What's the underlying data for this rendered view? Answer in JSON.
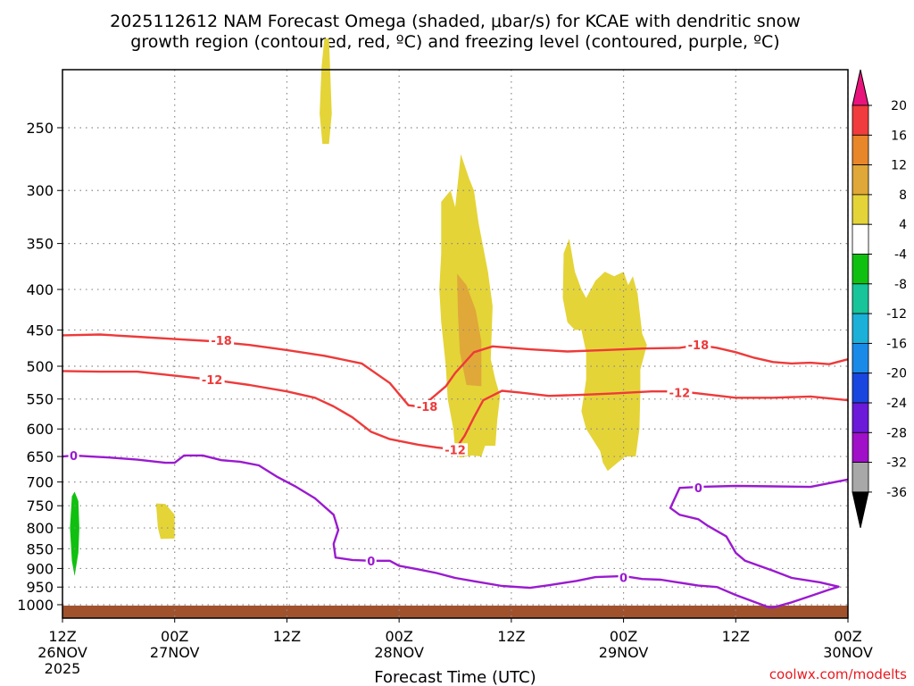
{
  "chart_data": {
    "type": "heatmap",
    "title_line1": "2025112612 NAM Forecast Omega (shaded, μbar/s) for KCAE with dendritic snow",
    "title_line2": "growth region (contoured, red, ºC) and freezing level (contoured, purple, ºC)",
    "xlabel": "Forecast Time (UTC)",
    "credit": "coolwx.com/modelts",
    "x_ticks": [
      {
        "hour": 0,
        "line1": "12Z",
        "line2": "26NOV",
        "line3": "2025"
      },
      {
        "hour": 12,
        "line1": "00Z",
        "line2": "27NOV",
        "line3": ""
      },
      {
        "hour": 24,
        "line1": "12Z",
        "line2": "",
        "line3": ""
      },
      {
        "hour": 36,
        "line1": "00Z",
        "line2": "28NOV",
        "line3": ""
      },
      {
        "hour": 48,
        "line1": "12Z",
        "line2": "",
        "line3": ""
      },
      {
        "hour": 60,
        "line1": "00Z",
        "line2": "29NOV",
        "line3": ""
      },
      {
        "hour": 72,
        "line1": "12Z",
        "line2": "",
        "line3": ""
      },
      {
        "hour": 84,
        "line1": "00Z",
        "line2": "30NOV",
        "line3": ""
      }
    ],
    "x_range_hours": [
      0,
      84
    ],
    "y_ticks_hpa": [
      250,
      300,
      350,
      400,
      450,
      500,
      550,
      600,
      650,
      700,
      750,
      800,
      850,
      900,
      950,
      1000
    ],
    "y_range_hpa": [
      200,
      1020
    ],
    "colorbar": {
      "tick_labels": [
        "20",
        "16",
        "12",
        "8",
        "4",
        "-4",
        "-8",
        "-12",
        "-16",
        "-20",
        "-24",
        "-28",
        "-32",
        "-36"
      ],
      "bands": [
        {
          "range": "16 to 20",
          "color": "#f03c3c"
        },
        {
          "range": "12 to 16",
          "color": "#e8862a"
        },
        {
          "range": "8 to 12",
          "color": "#e0a838"
        },
        {
          "range": "4 to 8",
          "color": "#e4d438"
        },
        {
          "range": "-4 to 4",
          "color": "#ffffff"
        },
        {
          "range": "-8 to -4",
          "color": "#10c010"
        },
        {
          "range": "-12 to -8",
          "color": "#18c49a"
        },
        {
          "range": "-16 to -12",
          "color": "#1ab0d8"
        },
        {
          "range": "-20 to -16",
          "color": "#1a8ae8"
        },
        {
          "range": "-24 to -20",
          "color": "#1a46e0"
        },
        {
          "range": "-28 to -24",
          "color": "#6a1ad8"
        },
        {
          "range": "-32 to -28",
          "color": "#a010c8"
        },
        {
          "range": "-36 to -32",
          "color": "#a8a8a8"
        }
      ],
      "over_color": "#e8147c",
      "under_color": "#000000"
    },
    "contours": [
      {
        "name": "-18 C isotherm",
        "color": "#ee3a3a",
        "label": "-18",
        "points": [
          [
            0,
            457
          ],
          [
            4,
            456
          ],
          [
            8,
            459
          ],
          [
            12,
            462
          ],
          [
            16,
            465
          ],
          [
            20,
            470
          ],
          [
            24,
            477
          ],
          [
            28,
            485
          ],
          [
            32,
            496
          ],
          [
            35,
            525
          ],
          [
            37,
            560
          ],
          [
            38,
            562
          ],
          [
            39,
            555
          ],
          [
            41,
            530
          ],
          [
            42,
            510
          ],
          [
            44,
            480
          ],
          [
            46,
            472
          ],
          [
            50,
            476
          ],
          [
            54,
            479
          ],
          [
            58,
            477
          ],
          [
            62,
            475
          ],
          [
            66,
            474
          ],
          [
            68,
            470
          ],
          [
            70,
            474
          ],
          [
            72,
            480
          ],
          [
            74,
            488
          ],
          [
            76,
            494
          ],
          [
            78,
            496
          ],
          [
            80,
            495
          ],
          [
            82,
            497
          ],
          [
            84,
            490
          ]
        ],
        "label_positions": [
          [
            17,
            464
          ],
          [
            39,
            562
          ],
          [
            68,
            470
          ]
        ]
      },
      {
        "name": "-12 C isotherm",
        "color": "#ee3a3a",
        "label": "-12",
        "points": [
          [
            0,
            507
          ],
          [
            4,
            508
          ],
          [
            8,
            508
          ],
          [
            12,
            514
          ],
          [
            16,
            520
          ],
          [
            20,
            528
          ],
          [
            24,
            538
          ],
          [
            27,
            548
          ],
          [
            29,
            562
          ],
          [
            31,
            580
          ],
          [
            33,
            605
          ],
          [
            35,
            618
          ],
          [
            38,
            628
          ],
          [
            40,
            633
          ],
          [
            42,
            637
          ],
          [
            43,
            612
          ],
          [
            44,
            580
          ],
          [
            45,
            552
          ],
          [
            47,
            537
          ],
          [
            49,
            540
          ],
          [
            52,
            545
          ],
          [
            56,
            543
          ],
          [
            59,
            541
          ],
          [
            63,
            538
          ],
          [
            66,
            538
          ],
          [
            68,
            541
          ],
          [
            72,
            548
          ],
          [
            76,
            548
          ],
          [
            80,
            546
          ],
          [
            84,
            552
          ]
        ],
        "label_positions": [
          [
            16,
            520
          ],
          [
            42,
            637
          ],
          [
            66,
            540
          ]
        ]
      },
      {
        "name": "0 C freezing level",
        "color": "#9a1ad0",
        "label": "0",
        "segments": [
          [
            [
              0,
              650
            ],
            [
              1.2,
              648
            ],
            [
              3,
              650
            ],
            [
              5,
              652
            ],
            [
              8,
              656
            ],
            [
              11,
              662
            ],
            [
              12,
              662
            ],
            [
              13,
              648
            ],
            [
              15,
              648
            ],
            [
              17,
              657
            ],
            [
              19,
              660
            ],
            [
              21,
              667
            ],
            [
              23,
              690
            ],
            [
              25,
              710
            ],
            [
              27,
              734
            ],
            [
              29,
              770
            ],
            [
              29.5,
              805
            ],
            [
              29,
              838
            ],
            [
              29.2,
              872
            ],
            [
              31,
              878
            ],
            [
              33,
              880
            ],
            [
              35,
              880
            ],
            [
              36,
              893
            ],
            [
              38,
              902
            ],
            [
              40,
              912
            ],
            [
              42,
              925
            ],
            [
              44,
              934
            ],
            [
              47,
              947
            ],
            [
              50,
              952
            ],
            [
              52,
              945
            ],
            [
              55,
              933
            ],
            [
              57,
              923
            ],
            [
              60,
              920
            ],
            [
              62,
              928
            ],
            [
              64,
              930
            ],
            [
              66,
              938
            ],
            [
              68,
              946
            ],
            [
              70,
              950
            ],
            [
              72,
              972
            ],
            [
              74,
              992
            ],
            [
              75.6,
              1008
            ],
            [
              76,
              1008
            ],
            [
              78,
              993
            ],
            [
              80,
              975
            ],
            [
              82,
              957
            ],
            [
              83,
              949
            ],
            [
              81,
              937
            ],
            [
              78,
              925
            ],
            [
              76,
              906
            ],
            [
              73,
              880
            ],
            [
              72,
              860
            ],
            [
              71,
              820
            ],
            [
              69,
              795
            ],
            [
              68,
              780
            ],
            [
              66,
              770
            ],
            [
              65,
              755
            ],
            [
              66,
              712
            ],
            [
              68,
              710
            ],
            [
              72,
              708
            ],
            [
              76,
              709
            ],
            [
              80,
              710
            ],
            [
              84,
              695
            ]
          ]
        ],
        "label_positions": [
          [
            1.2,
            648
          ],
          [
            33,
            880
          ],
          [
            60,
            924
          ],
          [
            68,
            712
          ]
        ]
      }
    ],
    "shaded_regions": [
      {
        "band": "4 to 8",
        "color": "#e4d438",
        "points": [
          [
            28,
            193
          ],
          [
            28.5,
            193
          ],
          [
            28.8,
            240
          ],
          [
            28.5,
            262
          ],
          [
            27.8,
            262
          ],
          [
            27.5,
            240
          ],
          [
            27.7,
            210
          ]
        ]
      },
      {
        "band": "4 to 8",
        "color": "#e4d438",
        "points": [
          [
            10,
            745
          ],
          [
            11,
            746
          ],
          [
            12,
            770
          ],
          [
            12,
            825
          ],
          [
            10.5,
            826
          ],
          [
            10.2,
            800
          ]
        ]
      },
      {
        "band": "4 to 8",
        "color": "#e4d438",
        "points": [
          [
            40.5,
            310
          ],
          [
            41.5,
            300
          ],
          [
            42,
            315
          ],
          [
            42.6,
            270
          ],
          [
            43.5,
            290
          ],
          [
            44,
            300
          ],
          [
            44.5,
            330
          ],
          [
            45.5,
            380
          ],
          [
            46,
            420
          ],
          [
            45.8,
            490
          ],
          [
            46.3,
            520
          ],
          [
            46.8,
            545
          ],
          [
            46.5,
            585
          ],
          [
            46.3,
            630
          ],
          [
            45.2,
            630
          ],
          [
            44.8,
            650
          ],
          [
            43.8,
            648
          ],
          [
            42.5,
            652
          ],
          [
            42,
            640
          ],
          [
            41.8,
            600
          ],
          [
            41.2,
            550
          ],
          [
            41,
            500
          ],
          [
            40.5,
            440
          ],
          [
            40.3,
            400
          ],
          [
            40.5,
            360
          ]
        ]
      },
      {
        "band": "8 to 12",
        "color": "#e0a838",
        "points": [
          [
            42.2,
            382
          ],
          [
            43.2,
            395
          ],
          [
            44.2,
            425
          ],
          [
            44.8,
            465
          ],
          [
            44.8,
            530
          ],
          [
            43.2,
            528
          ],
          [
            42.5,
            480
          ],
          [
            42.3,
            430
          ]
        ]
      },
      {
        "band": "4 to 8",
        "color": "#e4d438",
        "points": [
          [
            53.6,
            360
          ],
          [
            54.2,
            345
          ],
          [
            54.8,
            380
          ],
          [
            55.5,
            400
          ],
          [
            56,
            410
          ],
          [
            57,
            390
          ],
          [
            58,
            380
          ],
          [
            59,
            385
          ],
          [
            60,
            380
          ],
          [
            60.5,
            395
          ],
          [
            61,
            385
          ],
          [
            61.5,
            405
          ],
          [
            62,
            455
          ],
          [
            62.5,
            470
          ],
          [
            61.8,
            505
          ],
          [
            61.8,
            540
          ],
          [
            61.7,
            600
          ],
          [
            61.3,
            650
          ],
          [
            60.2,
            650
          ],
          [
            59.5,
            660
          ],
          [
            58.3,
            678
          ],
          [
            57.8,
            662
          ],
          [
            57.5,
            640
          ],
          [
            56,
            600
          ],
          [
            55.5,
            570
          ],
          [
            56,
            520
          ],
          [
            56,
            480
          ],
          [
            55.5,
            450
          ],
          [
            54.8,
            450
          ],
          [
            54,
            440
          ],
          [
            53.5,
            410
          ]
        ]
      },
      {
        "band": "-8 to -4",
        "color": "#10c010",
        "points": [
          [
            1.0,
            730
          ],
          [
            1.3,
            720
          ],
          [
            1.7,
            740
          ],
          [
            1.8,
            800
          ],
          [
            1.7,
            860
          ],
          [
            1.3,
            920
          ],
          [
            1.0,
            880
          ],
          [
            0.8,
            800
          ]
        ]
      }
    ],
    "surface_terrain_color": "#a0522d"
  }
}
